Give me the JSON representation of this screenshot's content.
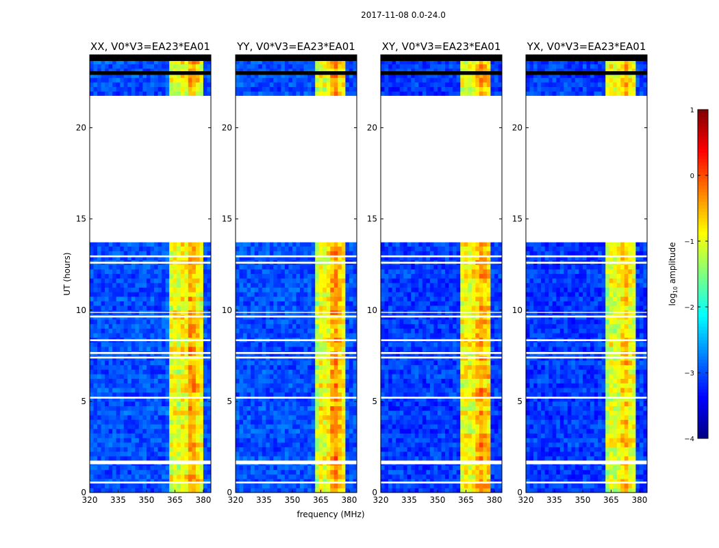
{
  "chart_data": {
    "type": "heatmap",
    "title": "2017-11-08 0.0-24.0",
    "xlabel": "frequency (MHz)",
    "ylabel": "UT (hours)",
    "xlim": [
      320,
      384
    ],
    "ylim": [
      0,
      24
    ],
    "xticks": [
      "320",
      "335",
      "350",
      "365",
      "380"
    ],
    "xtick_values": [
      320,
      335,
      350,
      365,
      380
    ],
    "yticks": [
      "0",
      "5",
      "10",
      "15",
      "20"
    ],
    "ytick_values": [
      0,
      5,
      10,
      15,
      20
    ],
    "colorbar": {
      "label": "log10 amplitude",
      "label_base": "log",
      "label_sub": "10",
      "label_rest": " amplitude",
      "range": [
        -4,
        1
      ],
      "ticks": [
        "1",
        "0",
        "−1",
        "−2",
        "−3",
        "−4"
      ],
      "tick_values": [
        1,
        0,
        -1,
        -2,
        -3,
        -4
      ],
      "colormap": "jet"
    },
    "channel_width_mhz": 2,
    "time_step_hours": 0.25,
    "flagged_hours": [
      [
        21.15,
        21.75
      ],
      [
        13.72,
        21.15
      ],
      [
        22.9,
        23.1
      ],
      [
        23.66,
        24.0
      ],
      [
        1.55,
        1.75
      ],
      [
        0.5,
        0.6
      ],
      [
        5.15,
        5.25
      ],
      [
        7.35,
        7.45
      ],
      [
        7.6,
        7.7
      ],
      [
        8.3,
        8.4
      ],
      [
        9.6,
        9.7
      ],
      [
        9.85,
        9.9
      ],
      [
        12.55,
        12.65
      ],
      [
        12.9,
        13.0
      ]
    ],
    "flag_fix": "gaps",
    "panels": [
      {
        "title": "XX, V0*V3=EA23*EA01",
        "band_profile": [
          -3.0,
          -3.0,
          -3.0,
          -3.0,
          -3.0,
          -3.0,
          -3.0,
          -3.0,
          -3.0,
          -3.0,
          -3.0,
          -3.0,
          -3.0,
          -3.0,
          -3.0,
          -3.0,
          -3.0,
          -3.0,
          -3.0,
          -3.0,
          -2.9,
          -1.0,
          -0.9,
          -1.1,
          -0.8,
          -0.9,
          -0.4,
          -0.5,
          -0.7,
          -0.9,
          -3.0,
          -3.0
        ]
      },
      {
        "title": "YY, V0*V3=EA23*EA01",
        "band_profile": [
          -3.0,
          -3.0,
          -3.0,
          -3.0,
          -3.0,
          -3.0,
          -3.0,
          -3.0,
          -3.0,
          -3.0,
          -3.0,
          -3.0,
          -3.0,
          -3.0,
          -3.0,
          -3.0,
          -3.0,
          -3.0,
          -3.0,
          -3.0,
          -3.0,
          -1.2,
          -0.9,
          -1.0,
          -0.9,
          -0.5,
          -0.3,
          -0.6,
          -0.8,
          -3.0,
          -3.0,
          -3.0
        ]
      },
      {
        "title": "XY, V0*V3=EA23*EA01",
        "band_profile": [
          -3.1,
          -3.1,
          -3.1,
          -3.1,
          -3.1,
          -3.1,
          -3.1,
          -3.1,
          -3.1,
          -3.1,
          -3.1,
          -3.1,
          -3.1,
          -3.1,
          -3.1,
          -3.1,
          -3.1,
          -3.1,
          -3.1,
          -3.1,
          -3.1,
          -1.0,
          -0.9,
          -1.0,
          -0.9,
          -0.6,
          -0.4,
          -0.6,
          -0.7,
          -3.1,
          -3.1,
          -3.1
        ]
      },
      {
        "title": "YX, V0*V3=EA23*EA01",
        "band_profile": [
          -3.1,
          -3.1,
          -3.1,
          -3.1,
          -3.1,
          -3.1,
          -3.1,
          -3.1,
          -3.1,
          -3.1,
          -3.1,
          -3.1,
          -3.1,
          -3.1,
          -3.1,
          -3.1,
          -3.1,
          -3.1,
          -3.1,
          -3.1,
          -3.1,
          -1.2,
          -1.0,
          -1.1,
          -1.0,
          -0.7,
          -0.6,
          -0.9,
          -1.0,
          -3.1,
          -3.1,
          -3.1
        ]
      }
    ]
  }
}
